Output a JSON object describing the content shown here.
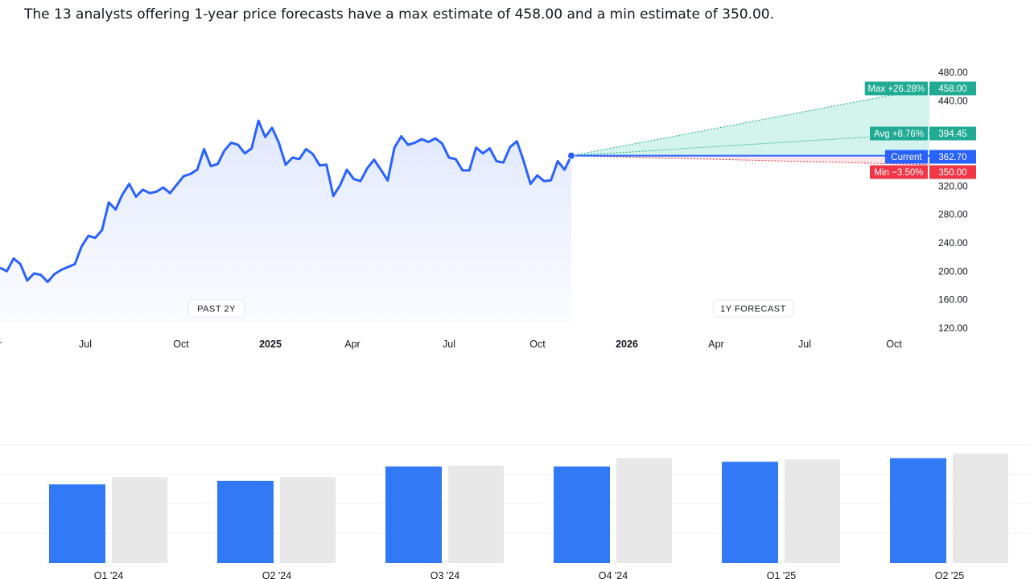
{
  "headline": "The 13 analysts offering 1-year price forecasts have a max estimate of 458.00 and a min estimate of 350.00.",
  "colors": {
    "line": "#2962ff",
    "area": "#e9efff",
    "max": "#22ab94",
    "avg": "#22ab94",
    "current": "#2962ff",
    "min": "#f23645",
    "bar_actual": "#3179f5",
    "bar_estimate": "#e8e8e8"
  },
  "chart_data": [
    {
      "type": "line",
      "title": "",
      "x_tick_labels": [
        {
          "label": "r",
          "bold": false
        },
        {
          "label": "Jul",
          "bold": false
        },
        {
          "label": "Oct",
          "bold": false
        },
        {
          "label": "2025",
          "bold": true
        },
        {
          "label": "Apr",
          "bold": false
        },
        {
          "label": "Jul",
          "bold": false
        },
        {
          "label": "Oct",
          "bold": false
        },
        {
          "label": "2026",
          "bold": true
        },
        {
          "label": "Apr",
          "bold": false
        },
        {
          "label": "Jul",
          "bold": false
        },
        {
          "label": "Oct",
          "bold": false
        }
      ],
      "y_tick_labels": [
        "480.00",
        "440.00",
        "320.00",
        "280.00",
        "240.00",
        "200.00",
        "160.00",
        "120.00"
      ],
      "y_ticks": [
        480,
        440,
        320,
        280,
        240,
        200,
        160,
        120
      ],
      "ylim": [
        120,
        480
      ],
      "period_labels": {
        "past": "PAST 2Y",
        "forecast": "1Y FORECAST"
      },
      "series": [
        {
          "values": [
            205,
            200,
            218,
            210,
            187,
            197,
            195,
            185,
            196,
            202,
            206,
            210,
            235,
            250,
            247,
            258,
            297,
            287,
            308,
            323,
            305,
            315,
            310,
            312,
            318,
            310,
            322,
            334,
            337,
            343,
            372,
            348,
            351,
            370,
            381,
            378,
            366,
            373,
            412,
            389,
            402,
            381,
            350,
            360,
            358,
            372,
            365,
            349,
            350,
            306,
            321,
            343,
            330,
            327,
            345,
            357,
            343,
            328,
            374,
            390,
            378,
            381,
            386,
            382,
            387,
            380,
            360,
            358,
            342,
            342,
            374,
            366,
            373,
            355,
            353,
            375,
            383,
            355,
            323,
            335,
            327,
            328,
            355,
            343,
            362.7
          ]
        }
      ],
      "forecast": {
        "current": {
          "label": "Current",
          "value": "362.70"
        },
        "max": {
          "label": "Max +26.28%",
          "value": "458.00"
        },
        "avg": {
          "label": "Avg +8.76%",
          "value": "394.45"
        },
        "min": {
          "label": "Min −3.50%",
          "value": "350.00"
        }
      }
    },
    {
      "type": "bar",
      "title": "",
      "categories": [
        "Q1 '24",
        "Q2 '24",
        "Q3 '24",
        "Q4 '24",
        "Q1 '25",
        "Q2 '25"
      ],
      "series": [
        {
          "values": [
            0.66,
            0.69,
            0.81,
            0.81,
            0.85,
            0.88
          ]
        },
        {
          "values": [
            0.72,
            0.72,
            0.82,
            0.88,
            0.87,
            0.92
          ]
        }
      ]
    }
  ]
}
